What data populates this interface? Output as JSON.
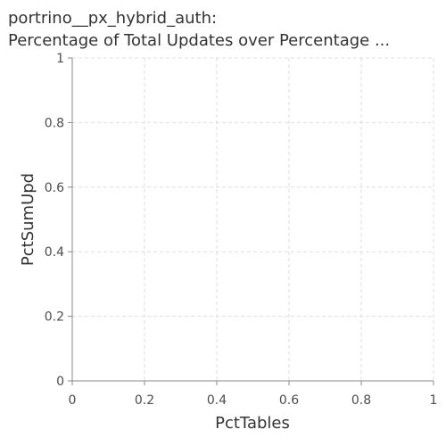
{
  "chart_data": {
    "type": "line",
    "title": [
      "portrino__px_hybrid_auth:",
      "Percentage of Total Updates over Percentage ..."
    ],
    "xlabel": "PctTables",
    "ylabel": "PctSumUpd",
    "xlim": [
      0,
      1
    ],
    "ylim": [
      0,
      1
    ],
    "xticks": [
      0,
      0.2,
      0.4,
      0.6,
      0.8,
      1
    ],
    "yticks": [
      0,
      0.2,
      0.4,
      0.6,
      0.8,
      1
    ],
    "xtick_labels": [
      "0",
      "0.2",
      "0.4",
      "0.6",
      "0.8",
      "1"
    ],
    "ytick_labels": [
      "0",
      "0.2",
      "0.4",
      "0.6",
      "0.8",
      "1"
    ],
    "grid": true,
    "series": []
  }
}
